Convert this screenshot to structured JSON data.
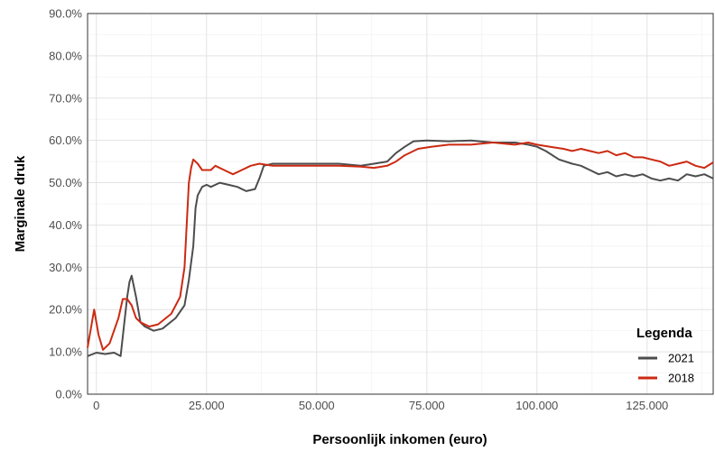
{
  "chart_data": {
    "type": "line",
    "xlabel": "Persoonlijk inkomen (euro)",
    "ylabel": "Marginale druk",
    "xlim": [
      -2000,
      140000
    ],
    "ylim": [
      0,
      0.9
    ],
    "x_ticks": [
      0,
      25000,
      50000,
      75000,
      100000,
      125000
    ],
    "x_tick_labels": [
      "0",
      "25.000",
      "50.000",
      "75.000",
      "100.000",
      "125.000"
    ],
    "y_ticks": [
      0,
      0.1,
      0.2,
      0.3,
      0.4,
      0.5,
      0.6,
      0.7,
      0.8,
      0.9
    ],
    "y_tick_labels": [
      "0.0%",
      "10.0%",
      "20.0%",
      "30.0%",
      "40.0%",
      "50.0%",
      "60.0%",
      "70.0%",
      "80.0%",
      "90.0%"
    ],
    "grid": true,
    "legend": {
      "title": "Legenda",
      "position": "bottom-right"
    },
    "series": [
      {
        "name": "2021",
        "color": "#4d4d4d",
        "points": [
          [
            -2000,
            0.09
          ],
          [
            0,
            0.098
          ],
          [
            2000,
            0.095
          ],
          [
            4000,
            0.098
          ],
          [
            5500,
            0.09
          ],
          [
            7000,
            0.23
          ],
          [
            7500,
            0.265
          ],
          [
            8000,
            0.28
          ],
          [
            9000,
            0.23
          ],
          [
            10000,
            0.17
          ],
          [
            11000,
            0.16
          ],
          [
            13000,
            0.15
          ],
          [
            15000,
            0.155
          ],
          [
            18000,
            0.18
          ],
          [
            20000,
            0.21
          ],
          [
            21000,
            0.27
          ],
          [
            22000,
            0.35
          ],
          [
            22500,
            0.44
          ],
          [
            23000,
            0.47
          ],
          [
            24000,
            0.49
          ],
          [
            25000,
            0.495
          ],
          [
            26000,
            0.49
          ],
          [
            28000,
            0.5
          ],
          [
            30000,
            0.495
          ],
          [
            32000,
            0.49
          ],
          [
            34000,
            0.48
          ],
          [
            36000,
            0.485
          ],
          [
            37000,
            0.51
          ],
          [
            38000,
            0.54
          ],
          [
            40000,
            0.545
          ],
          [
            45000,
            0.545
          ],
          [
            50000,
            0.545
          ],
          [
            55000,
            0.545
          ],
          [
            60000,
            0.54
          ],
          [
            63000,
            0.545
          ],
          [
            66000,
            0.55
          ],
          [
            68000,
            0.57
          ],
          [
            70000,
            0.585
          ],
          [
            72000,
            0.598
          ],
          [
            75000,
            0.6
          ],
          [
            80000,
            0.598
          ],
          [
            85000,
            0.6
          ],
          [
            90000,
            0.595
          ],
          [
            95000,
            0.595
          ],
          [
            98000,
            0.59
          ],
          [
            100000,
            0.585
          ],
          [
            102000,
            0.575
          ],
          [
            105000,
            0.555
          ],
          [
            108000,
            0.545
          ],
          [
            110000,
            0.54
          ],
          [
            112000,
            0.53
          ],
          [
            114000,
            0.52
          ],
          [
            116000,
            0.525
          ],
          [
            118000,
            0.515
          ],
          [
            120000,
            0.52
          ],
          [
            122000,
            0.515
          ],
          [
            124000,
            0.52
          ],
          [
            126000,
            0.51
          ],
          [
            128000,
            0.505
          ],
          [
            130000,
            0.51
          ],
          [
            132000,
            0.505
          ],
          [
            134000,
            0.52
          ],
          [
            136000,
            0.515
          ],
          [
            138000,
            0.52
          ],
          [
            140000,
            0.51
          ]
        ]
      },
      {
        "name": "2018",
        "color": "#cc2a12",
        "points": [
          [
            -2000,
            0.11
          ],
          [
            -500,
            0.2
          ],
          [
            500,
            0.14
          ],
          [
            1500,
            0.105
          ],
          [
            3000,
            0.12
          ],
          [
            5000,
            0.18
          ],
          [
            6000,
            0.225
          ],
          [
            7000,
            0.225
          ],
          [
            8000,
            0.21
          ],
          [
            9000,
            0.18
          ],
          [
            10000,
            0.17
          ],
          [
            12000,
            0.16
          ],
          [
            14000,
            0.165
          ],
          [
            17000,
            0.19
          ],
          [
            19000,
            0.23
          ],
          [
            20000,
            0.3
          ],
          [
            20500,
            0.4
          ],
          [
            21000,
            0.5
          ],
          [
            21500,
            0.535
          ],
          [
            22000,
            0.555
          ],
          [
            23000,
            0.545
          ],
          [
            24000,
            0.53
          ],
          [
            26000,
            0.53
          ],
          [
            27000,
            0.54
          ],
          [
            29000,
            0.53
          ],
          [
            31000,
            0.52
          ],
          [
            33000,
            0.53
          ],
          [
            35000,
            0.54
          ],
          [
            37000,
            0.545
          ],
          [
            40000,
            0.54
          ],
          [
            45000,
            0.54
          ],
          [
            50000,
            0.54
          ],
          [
            55000,
            0.54
          ],
          [
            60000,
            0.538
          ],
          [
            63000,
            0.535
          ],
          [
            66000,
            0.54
          ],
          [
            68000,
            0.55
          ],
          [
            70000,
            0.565
          ],
          [
            73000,
            0.58
          ],
          [
            76000,
            0.585
          ],
          [
            80000,
            0.59
          ],
          [
            85000,
            0.59
          ],
          [
            90000,
            0.595
          ],
          [
            95000,
            0.59
          ],
          [
            98000,
            0.595
          ],
          [
            100000,
            0.59
          ],
          [
            103000,
            0.585
          ],
          [
            106000,
            0.58
          ],
          [
            108000,
            0.575
          ],
          [
            110000,
            0.58
          ],
          [
            112000,
            0.575
          ],
          [
            114000,
            0.57
          ],
          [
            116000,
            0.575
          ],
          [
            118000,
            0.565
          ],
          [
            120000,
            0.57
          ],
          [
            122000,
            0.56
          ],
          [
            124000,
            0.56
          ],
          [
            126000,
            0.555
          ],
          [
            128000,
            0.55
          ],
          [
            130000,
            0.54
          ],
          [
            132000,
            0.545
          ],
          [
            134000,
            0.55
          ],
          [
            136000,
            0.54
          ],
          [
            138000,
            0.535
          ],
          [
            140000,
            0.548
          ]
        ]
      }
    ]
  }
}
